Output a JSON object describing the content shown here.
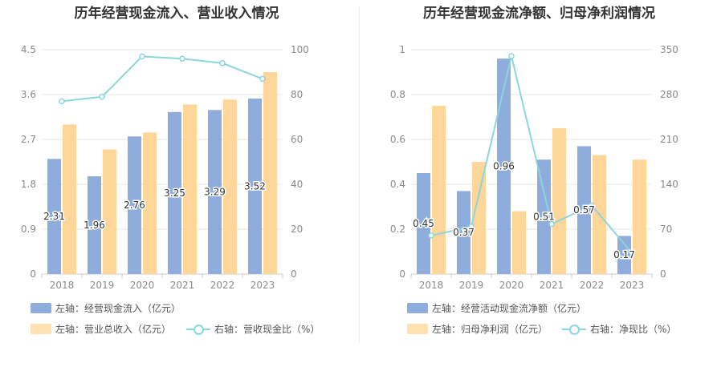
{
  "colors": {
    "bar1": "#8eacdc",
    "bar2": "#ffd699",
    "line": "#8bd6dc",
    "grid": "#e6e6e6",
    "axis": "#cccccc"
  },
  "chart_data": [
    {
      "type": "bar",
      "title": "历年经营现金流入、营业收入情况",
      "categories": [
        "2018",
        "2019",
        "2020",
        "2021",
        "2022",
        "2023"
      ],
      "left_axis": {
        "ylim": [
          0,
          4.5
        ],
        "ticks": [
          "0",
          "0.9",
          "1.8",
          "2.7",
          "3.6",
          "4.5"
        ]
      },
      "right_axis": {
        "ylim": [
          0,
          100
        ],
        "ticks": [
          "0",
          "20",
          "40",
          "60",
          "80",
          "100"
        ]
      },
      "series": [
        {
          "name": "左轴：经营现金流入（亿元）",
          "axis": "left",
          "kind": "bar",
          "values": [
            2.31,
            1.96,
            2.76,
            3.25,
            3.29,
            3.52
          ],
          "labels": [
            "2.31",
            "1.96",
            "2.76",
            "3.25",
            "3.29",
            "3.52"
          ]
        },
        {
          "name": "左轴：营业总收入（亿元）",
          "axis": "left",
          "kind": "bar",
          "values": [
            3.0,
            2.5,
            2.84,
            3.4,
            3.5,
            4.05
          ]
        },
        {
          "name": "右轴：营收现金比（%）",
          "axis": "right",
          "kind": "line",
          "values": [
            77,
            79,
            97,
            96,
            94,
            87
          ]
        }
      ]
    },
    {
      "type": "bar",
      "title": "历年经营现金流净额、归母净利润情况",
      "categories": [
        "2018",
        "2019",
        "2020",
        "2021",
        "2022",
        "2023"
      ],
      "left_axis": {
        "ylim": [
          0,
          1
        ],
        "ticks": [
          "0",
          "0.2",
          "0.4",
          "0.6",
          "0.8",
          "1"
        ]
      },
      "right_axis": {
        "ylim": [
          0,
          350
        ],
        "ticks": [
          "0",
          "70",
          "140",
          "210",
          "280",
          "350"
        ]
      },
      "series": [
        {
          "name": "左轴：经营活动现金流净额（亿元）",
          "axis": "left",
          "kind": "bar",
          "values": [
            0.45,
            0.37,
            0.96,
            0.51,
            0.57,
            0.17
          ],
          "labels": [
            "0.45",
            "0.37",
            "0.96",
            "0.51",
            "0.57",
            "0.17"
          ]
        },
        {
          "name": "左轴：归母净利润（亿元）",
          "axis": "left",
          "kind": "bar",
          "values": [
            0.75,
            0.5,
            0.28,
            0.65,
            0.53,
            0.51
          ]
        },
        {
          "name": "右轴：净现比（%）",
          "axis": "right",
          "kind": "line",
          "values": [
            60,
            74,
            340,
            78,
            107,
            33
          ]
        }
      ]
    }
  ]
}
